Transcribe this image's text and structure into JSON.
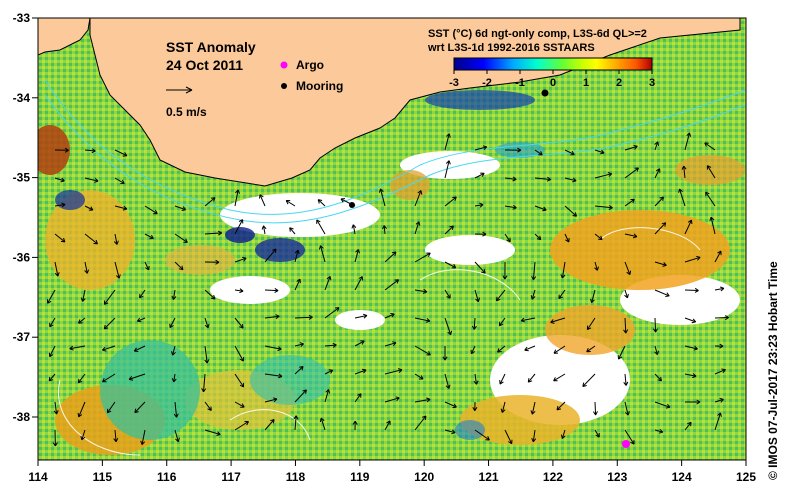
{
  "map": {
    "title": "SST Anomaly",
    "date": "24 Oct 2011",
    "arrow_scale_label": "0.5 m/s",
    "legend": {
      "argo": "Argo",
      "mooring": "Mooring",
      "argo_color": "#ff00ff",
      "mooring_color": "#000000"
    },
    "colorbar": {
      "title_line1": "SST (°C) 6d ngt-only comp, L3S-6d QL>=2",
      "title_line2": "wrt L3S-1d 1992-2016 SSTAARS",
      "ticks": [
        "-3",
        "-2",
        "-1",
        "0",
        "1",
        "2",
        "3"
      ],
      "range": [
        -3,
        3
      ],
      "colors": [
        "#00008b",
        "#0000ff",
        "#00aaff",
        "#00ffcc",
        "#66ff33",
        "#ccff00",
        "#ffff00",
        "#ffaa00",
        "#ff5500",
        "#b00000"
      ]
    },
    "x_ticks": [
      "114",
      "115",
      "116",
      "117",
      "118",
      "119",
      "120",
      "121",
      "122",
      "123",
      "124",
      "125"
    ],
    "y_ticks": [
      "-33",
      "-34",
      "-35",
      "-36",
      "-37",
      "-38"
    ],
    "land_color": "#fcc99a",
    "credit": "© IMOS 07-Jul-2017 23:23 Hobart Time"
  }
}
